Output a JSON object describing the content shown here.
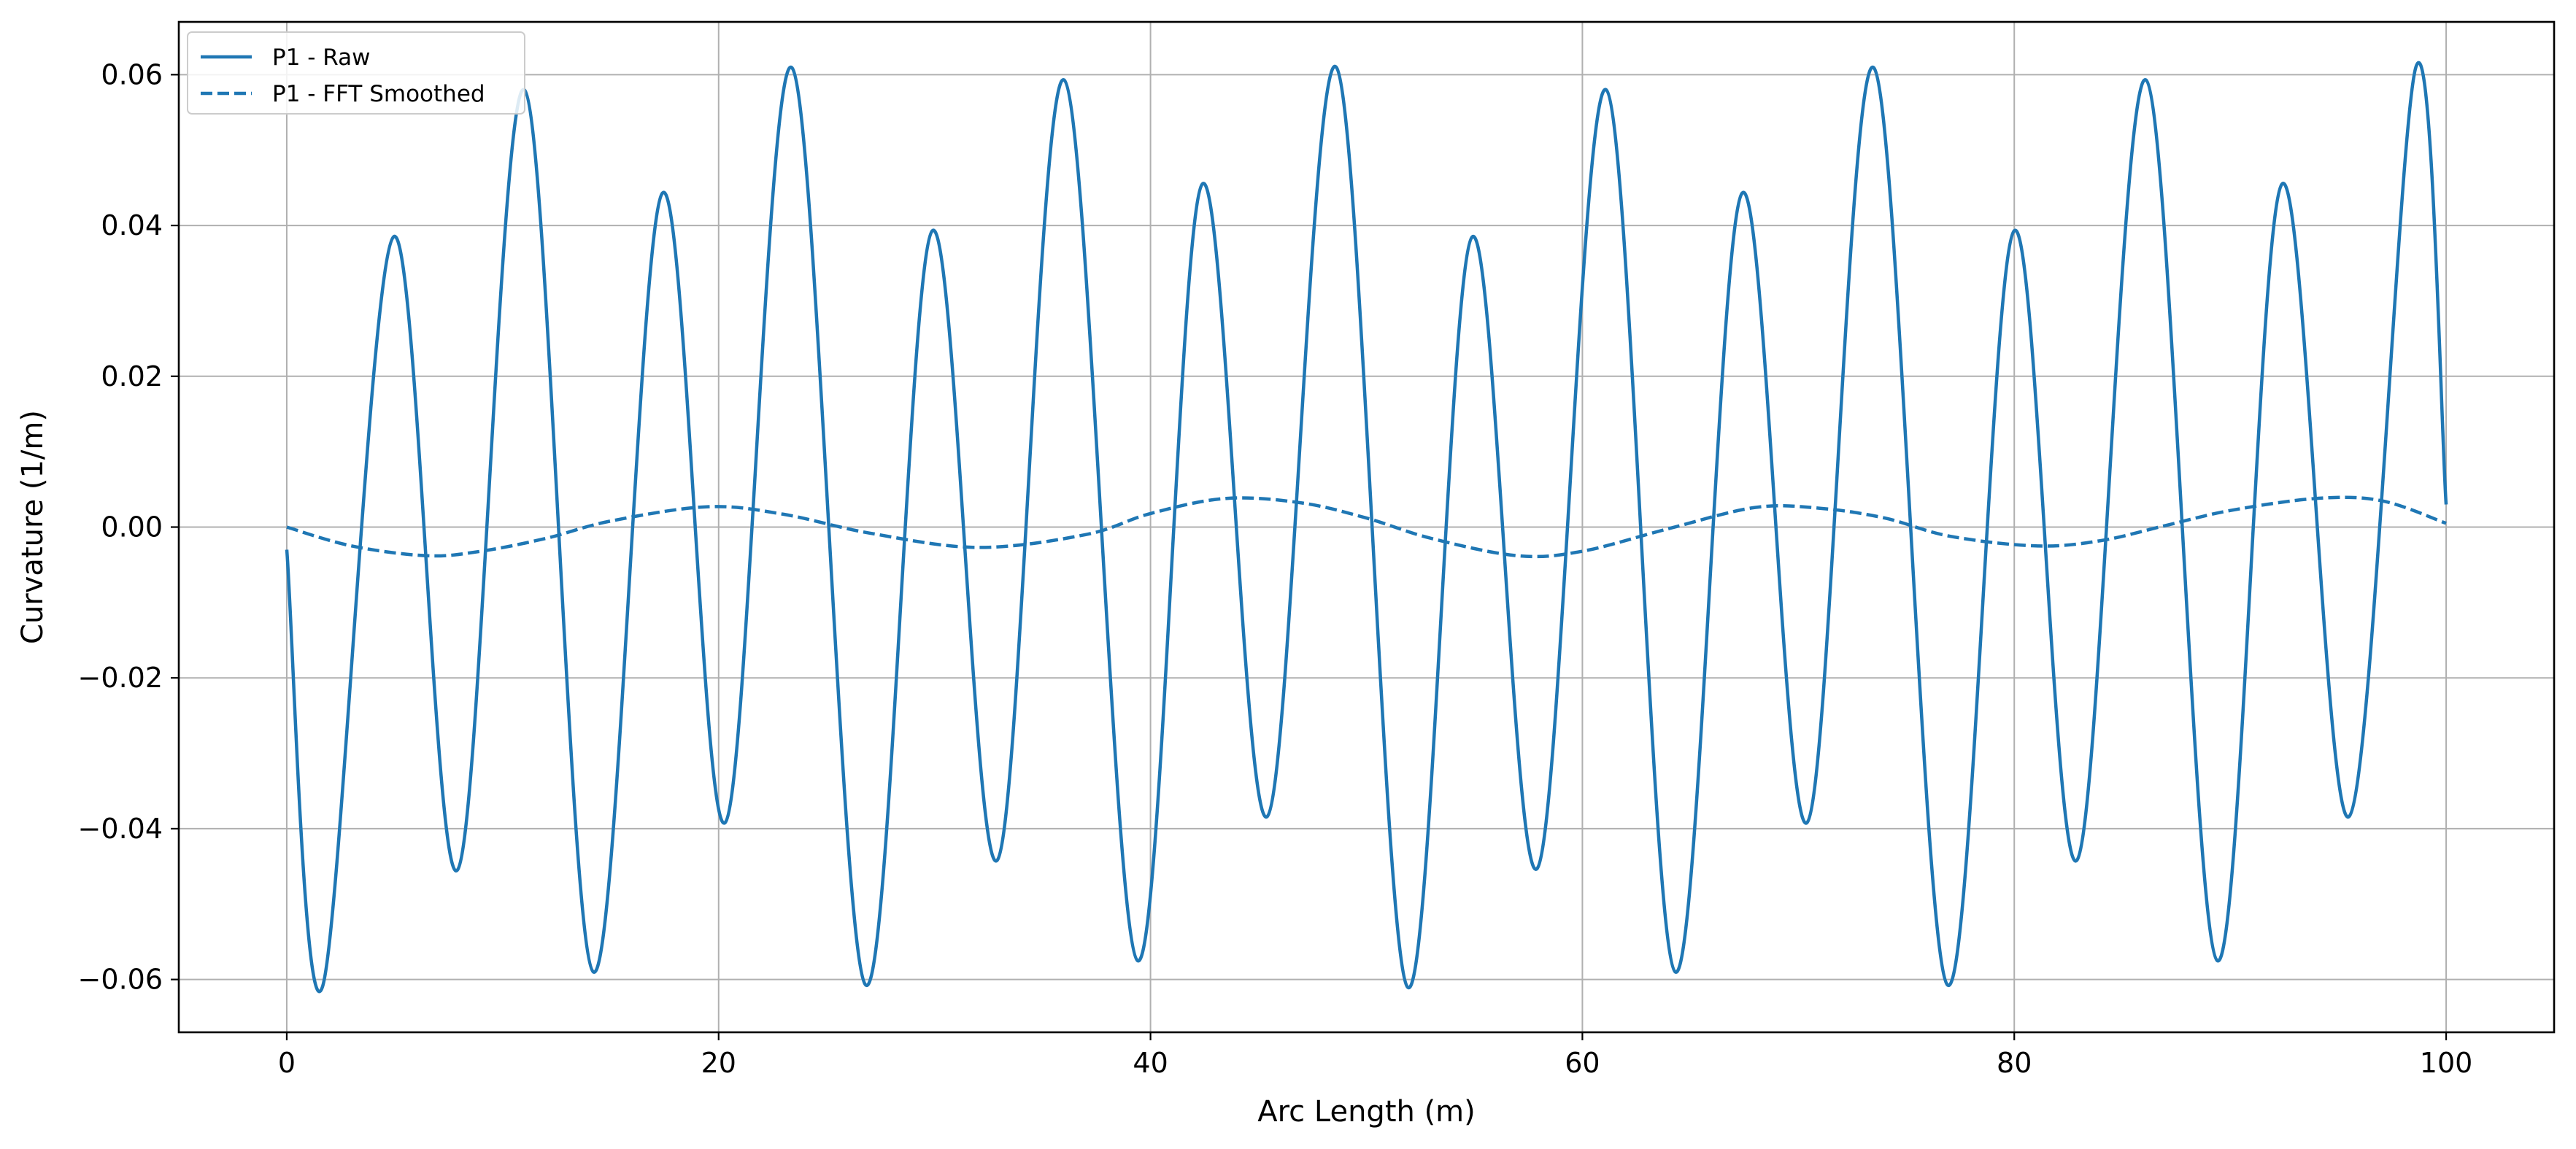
{
  "chart_data": {
    "type": "line",
    "title": "",
    "xlabel": "Arc Length (m)",
    "ylabel": "Curvature (1/m)",
    "xlim": [
      -5,
      105
    ],
    "ylim": [
      -0.067,
      0.067
    ],
    "x_ticks": [
      0,
      20,
      40,
      60,
      80,
      100
    ],
    "x_tick_labels": [
      "0",
      "20",
      "40",
      "60",
      "80",
      "100"
    ],
    "y_ticks": [
      -0.06,
      -0.04,
      -0.02,
      0.0,
      0.02,
      0.04,
      0.06
    ],
    "y_tick_labels": [
      "−0.06",
      "−0.04",
      "−0.02",
      "0.00",
      "0.02",
      "0.04",
      "0.06"
    ],
    "grid": true,
    "legend_position": "top-left",
    "colors": {
      "series": "#1f77b4",
      "grid": "#b0b0b0",
      "axes": "#000000"
    },
    "series": [
      {
        "name": "P1 - Raw",
        "style": "solid",
        "x": [
          0.0,
          1.65,
          4.95,
          7.9,
          11.0,
          14.2,
          17.4,
          20.3,
          23.4,
          26.8,
          29.9,
          32.9,
          36.0,
          39.4,
          42.4,
          45.4,
          48.6,
          51.9,
          54.9,
          57.9,
          61.1,
          64.3,
          67.4,
          70.4,
          73.5,
          76.9,
          80.0,
          82.9,
          86.1,
          89.4,
          92.4,
          95.5,
          98.6,
          100.0
        ],
        "y": [
          -0.003,
          -0.061,
          0.0385,
          -0.0455,
          0.058,
          -0.059,
          0.0443,
          -0.0392,
          0.0609,
          -0.0607,
          0.0393,
          -0.0442,
          0.0593,
          -0.0575,
          0.0455,
          -0.0384,
          0.061,
          -0.061,
          0.0385,
          -0.0453,
          0.058,
          -0.059,
          0.0443,
          -0.0392,
          0.0609,
          -0.0607,
          0.0393,
          -0.0442,
          0.0593,
          -0.0575,
          0.0455,
          -0.0384,
          0.061,
          0.003
        ]
      },
      {
        "name": "P1 - FFT Smoothed",
        "style": "dashed",
        "x": [
          0,
          3,
          6.5,
          9,
          12,
          15,
          19.5,
          23,
          27,
          32,
          37,
          40,
          43.5,
          47,
          50,
          53,
          57,
          60,
          64,
          68,
          71,
          74,
          77,
          81,
          84,
          87,
          90,
          94,
          97,
          100
        ],
        "y": [
          0.0,
          -0.0025,
          -0.0038,
          -0.0032,
          -0.0015,
          0.0008,
          0.0027,
          0.0017,
          -0.0008,
          -0.0027,
          -0.001,
          0.0018,
          0.0038,
          0.0032,
          0.0012,
          -0.0015,
          -0.0038,
          -0.0032,
          -0.0002,
          0.0026,
          0.0025,
          0.0012,
          -0.0012,
          -0.0025,
          -0.0018,
          0.0002,
          0.0022,
          0.0038,
          0.0035,
          0.0005
        ]
      }
    ]
  }
}
